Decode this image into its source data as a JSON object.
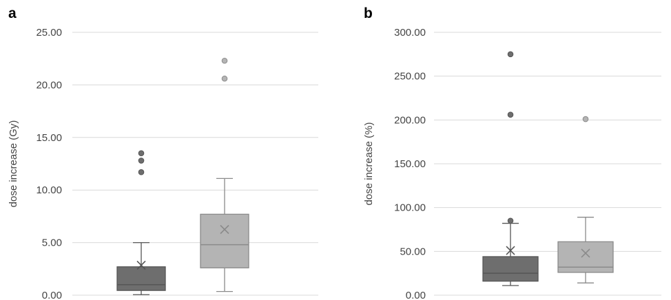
{
  "panels": [
    {
      "letter": "a",
      "ylabel": "dose increase (Gy)"
    },
    {
      "letter": "b",
      "ylabel": "dose increase (%)"
    }
  ],
  "chart_data": [
    {
      "type": "boxplot",
      "panel": "a",
      "ylabel": "dose increase (Gy)",
      "ylim": [
        0,
        25
      ],
      "yticks": [
        "0.00",
        "5.00",
        "10.00",
        "15.00",
        "20.00",
        "25.00"
      ],
      "grid": true,
      "series": [
        {
          "color": "#6e6e6e",
          "min": 0.05,
          "q1": 0.45,
          "median": 1.0,
          "q3": 2.7,
          "max": 5.0,
          "mean": 2.85,
          "outliers": [
            11.7,
            12.8,
            13.5
          ]
        },
        {
          "color": "#b4b4b4",
          "min": 0.35,
          "q1": 2.6,
          "median": 4.8,
          "q3": 7.7,
          "max": 11.1,
          "mean": 6.25,
          "outliers": [
            20.6,
            22.3
          ]
        }
      ]
    },
    {
      "type": "boxplot",
      "panel": "b",
      "ylabel": "dose increase (%)",
      "ylim": [
        0,
        300
      ],
      "yticks": [
        "0.00",
        "50.00",
        "100.00",
        "150.00",
        "200.00",
        "250.00",
        "300.00"
      ],
      "grid": true,
      "series": [
        {
          "color": "#6e6e6e",
          "min": 11,
          "q1": 16,
          "median": 25,
          "q3": 44,
          "max": 82,
          "mean": 51,
          "outliers": [
            85,
            206,
            275
          ]
        },
        {
          "color": "#b4b4b4",
          "min": 14,
          "q1": 26,
          "median": 32,
          "q3": 61,
          "max": 89,
          "mean": 48,
          "outliers": [
            201
          ]
        }
      ]
    }
  ]
}
